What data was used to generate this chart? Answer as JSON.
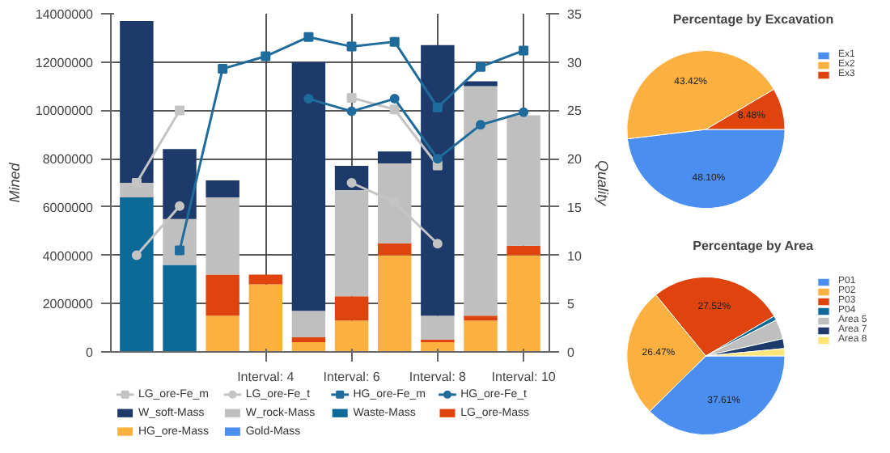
{
  "chart_data": [
    {
      "type": "bar",
      "stacked": true,
      "categories": [
        null,
        null,
        null,
        "Interval: 4",
        null,
        "Interval: 6",
        null,
        "Interval: 8",
        null,
        "Interval: 10"
      ],
      "ylabel": "Mined",
      "y2label": "Quality",
      "ylim": [
        0,
        14000000
      ],
      "yticks": [
        0,
        2000000,
        4000000,
        6000000,
        8000000,
        10000000,
        12000000,
        14000000
      ],
      "y2lim": [
        0,
        35
      ],
      "y2ticks": [
        0,
        5,
        10,
        15,
        20,
        25,
        30,
        35
      ],
      "grid": true,
      "legend": "bottom",
      "series": [
        {
          "name": "Gold-Mass",
          "color": "#4a8ef0",
          "values": [
            0,
            0,
            0,
            0,
            0,
            0,
            0,
            0,
            0,
            0
          ]
        },
        {
          "name": "HG_ore-Mass",
          "color": "#fbb040",
          "values": [
            null,
            null,
            1500000,
            2800000,
            400000,
            1300000,
            4000000,
            400000,
            1300000,
            4000000
          ]
        },
        {
          "name": "LG_ore-Mass",
          "color": "#e0440e",
          "values": [
            null,
            null,
            1700000,
            400000,
            200000,
            1000000,
            500000,
            100000,
            200000,
            400000
          ]
        },
        {
          "name": "Waste-Mass",
          "color": "#0d6a98",
          "values": [
            6400000,
            3600000,
            0,
            null,
            0,
            0,
            0,
            0,
            0,
            0
          ]
        },
        {
          "name": "W_rock-Mass",
          "color": "#bfbfbf",
          "values": [
            600000,
            1900000,
            3200000,
            null,
            1100000,
            4400000,
            3300000,
            1000000,
            9500000,
            5400000
          ]
        },
        {
          "name": "W_soft-Mass",
          "color": "#1d3a6b",
          "values": [
            6700000,
            2900000,
            700000,
            null,
            10300000,
            1000000,
            500000,
            11200000,
            200000,
            0
          ]
        },
        {
          "name": "LG_ore-Fe_m",
          "type": "line",
          "axis": "y2",
          "marker": "square",
          "color": "#c4c4c4",
          "values": [
            17.5,
            25.0,
            null,
            null,
            null,
            26.3,
            25.1,
            19.3,
            null,
            null
          ]
        },
        {
          "name": "LG_ore-Fe_t",
          "type": "line",
          "axis": "y2",
          "marker": "circle",
          "color": "#c4c4c4",
          "values": [
            10.0,
            15.1,
            null,
            null,
            null,
            17.5,
            15.5,
            11.2,
            null,
            null
          ]
        },
        {
          "name": "HG_ore-Fe_m",
          "type": "line",
          "axis": "y2",
          "marker": "square",
          "color": "#1f6c9c",
          "values": [
            null,
            10.5,
            29.3,
            30.6,
            32.6,
            31.6,
            32.1,
            25.3,
            29.5,
            31.2
          ]
        },
        {
          "name": "HG_ore-Fe_t",
          "type": "line",
          "axis": "y2",
          "marker": "circle",
          "color": "#1f6c9c",
          "values": [
            null,
            null,
            null,
            null,
            26.2,
            24.9,
            26.2,
            20.0,
            23.5,
            24.8
          ]
        }
      ]
    },
    {
      "type": "pie",
      "title": "Percentage by Excavation",
      "legend": "right",
      "categories": [
        "Ex1",
        "Ex2",
        "Ex3"
      ],
      "values": [
        48.1,
        43.42,
        8.48
      ],
      "colors": [
        "#4a8ef0",
        "#fbb040",
        "#e0440e"
      ],
      "value_labels": [
        "48.10%",
        "43.42%",
        "8.48%"
      ]
    },
    {
      "type": "pie",
      "title": "Percentage by Area",
      "legend": "right",
      "categories": [
        "P01",
        "P02",
        "P03",
        "P04",
        "Area 5",
        "Area 7",
        "Area 8"
      ],
      "values": [
        37.61,
        26.47,
        27.52,
        0.9,
        4.0,
        2.0,
        1.5
      ],
      "colors": [
        "#4a8ef0",
        "#fbb040",
        "#e0440e",
        "#0d6a98",
        "#bfbfbf",
        "#1d3a6b",
        "#fde57a"
      ],
      "value_labels": [
        "37.61%",
        "26.47%",
        "27.52%",
        null,
        null,
        null,
        null
      ]
    }
  ]
}
